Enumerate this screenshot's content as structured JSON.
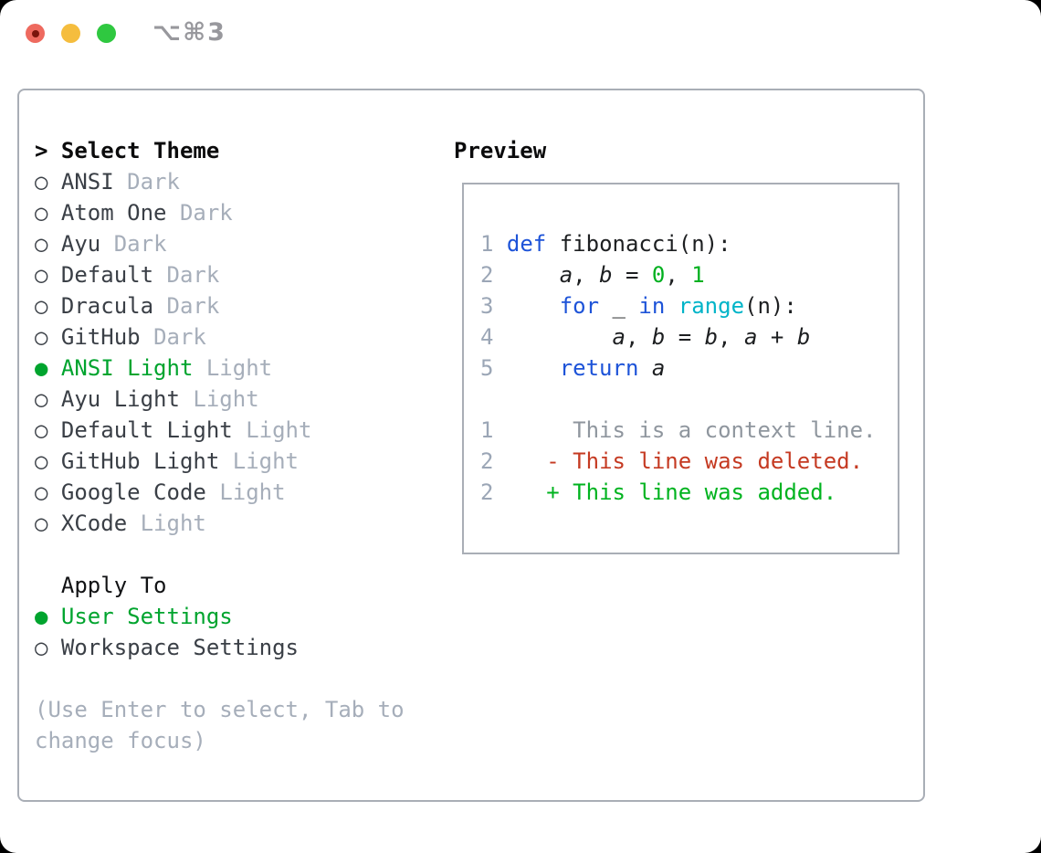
{
  "titlebar": {
    "shortcut_hint": "⌥⌘3",
    "traffic_lights": [
      {
        "name": "close",
        "color": "#ee6a5f",
        "has_dot": true
      },
      {
        "name": "minimize",
        "color": "#f5bd3e",
        "has_dot": false
      },
      {
        "name": "zoom",
        "color": "#2fc840",
        "has_dot": false
      }
    ]
  },
  "theme_picker": {
    "title_prefix": ">",
    "title": "Select Theme",
    "items": [
      {
        "name": "ANSI",
        "variant": "Dark",
        "selected": false
      },
      {
        "name": "Atom One",
        "variant": "Dark",
        "selected": false
      },
      {
        "name": "Ayu",
        "variant": "Dark",
        "selected": false
      },
      {
        "name": "Default",
        "variant": "Dark",
        "selected": false
      },
      {
        "name": "Dracula",
        "variant": "Dark",
        "selected": false
      },
      {
        "name": "GitHub",
        "variant": "Dark",
        "selected": false
      },
      {
        "name": "ANSI Light",
        "variant": "Light",
        "selected": true
      },
      {
        "name": "Ayu Light",
        "variant": "Light",
        "selected": false
      },
      {
        "name": "Default Light",
        "variant": "Light",
        "selected": false
      },
      {
        "name": "GitHub Light",
        "variant": "Light",
        "selected": false
      },
      {
        "name": "Google Code",
        "variant": "Light",
        "selected": false
      },
      {
        "name": "XCode",
        "variant": "Light",
        "selected": false
      }
    ],
    "radio_selected_glyph": "●",
    "radio_unselected_glyph": "○"
  },
  "apply_to": {
    "title": "Apply To",
    "options": [
      {
        "label": "User Settings",
        "selected": true
      },
      {
        "label": "Workspace Settings",
        "selected": false
      }
    ]
  },
  "help_lines": [
    "(Use Enter to select, Tab to",
    "change focus)"
  ],
  "preview": {
    "title": "Preview",
    "lines": [
      {
        "num": "1",
        "tokens": [
          [
            "kw",
            "def"
          ],
          [
            "plain",
            " fibonacci(n):"
          ]
        ]
      },
      {
        "num": "2",
        "tokens": [
          [
            "plain",
            "    "
          ],
          [
            "var",
            "a"
          ],
          [
            "plain",
            ", "
          ],
          [
            "var",
            "b"
          ],
          [
            "plain",
            " = "
          ],
          [
            "num",
            "0"
          ],
          [
            "plain",
            ", "
          ],
          [
            "num",
            "1"
          ]
        ]
      },
      {
        "num": "3",
        "tokens": [
          [
            "plain",
            "    "
          ],
          [
            "kw",
            "for"
          ],
          [
            "plain",
            " _ "
          ],
          [
            "kw",
            "in"
          ],
          [
            "plain",
            " "
          ],
          [
            "builtin",
            "range"
          ],
          [
            "plain",
            "(n):"
          ]
        ]
      },
      {
        "num": "4",
        "tokens": [
          [
            "plain",
            "        "
          ],
          [
            "var",
            "a"
          ],
          [
            "plain",
            ", "
          ],
          [
            "var",
            "b"
          ],
          [
            "plain",
            " = "
          ],
          [
            "var",
            "b"
          ],
          [
            "plain",
            ", "
          ],
          [
            "var",
            "a"
          ],
          [
            "plain",
            " + "
          ],
          [
            "var",
            "b"
          ]
        ]
      },
      {
        "num": "5",
        "tokens": [
          [
            "plain",
            "    "
          ],
          [
            "kw",
            "return"
          ],
          [
            "plain",
            " "
          ],
          [
            "var",
            "a"
          ]
        ]
      },
      {
        "num": "",
        "tokens": []
      },
      {
        "num": "1",
        "tokens": [
          [
            "ctx",
            "     This is a context line."
          ]
        ]
      },
      {
        "num": "2",
        "tokens": [
          [
            "plain",
            "   "
          ],
          [
            "del",
            "- This line was deleted."
          ]
        ]
      },
      {
        "num": "2",
        "tokens": [
          [
            "plain",
            "   "
          ],
          [
            "add",
            "+ This line was added."
          ]
        ]
      }
    ]
  },
  "colors": {
    "accent": "#00a42e",
    "text_dark": "#3a3f46",
    "text_faded": "#a6aeba",
    "border": "#a9aeb6",
    "code": "#1d1f21",
    "keyword": "#1d53d8",
    "builtin": "#00b4c8",
    "number": "#00b01f",
    "line_number": "#9ba6b6",
    "context": "#8f969e",
    "deleted": "#c53a22",
    "added": "#00b31f",
    "hint": "#98989d",
    "tl_red": "#ee6a5f",
    "tl_yellow": "#f5bd3e",
    "tl_green": "#2fc840"
  }
}
